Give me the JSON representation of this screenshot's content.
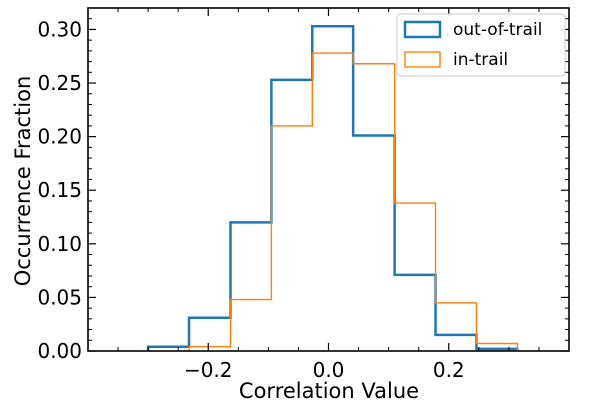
{
  "chart_data": {
    "type": "histogram",
    "xlabel": "Correlation Value",
    "ylabel": "Occurrence Fraction",
    "xlim": [
      -0.4,
      0.4
    ],
    "ylim": [
      0.0,
      0.32
    ],
    "xticks": [
      -0.2,
      0.0,
      0.2
    ],
    "xtick_labels": [
      "−0.2",
      "0.0",
      "0.2"
    ],
    "yticks": [
      0.0,
      0.05,
      0.1,
      0.15,
      0.2,
      0.25,
      0.3
    ],
    "ytick_labels": [
      "0.00",
      "0.05",
      "0.10",
      "0.15",
      "0.20",
      "0.25",
      "0.30"
    ],
    "grid": false,
    "legend_position": "top-right",
    "series": [
      {
        "name": "out-of-trail",
        "color": "#1f77b4",
        "style": "step",
        "bin_edges": [
          -0.3,
          -0.232,
          -0.163,
          -0.095,
          -0.027,
          0.041,
          0.11,
          0.178,
          0.246,
          0.314
        ],
        "values": [
          0.004,
          0.031,
          0.12,
          0.253,
          0.303,
          0.201,
          0.071,
          0.015,
          0.002
        ]
      },
      {
        "name": "in-trail",
        "color": "#ff7f0e",
        "style": "step",
        "bin_edges": [
          -0.232,
          -0.163,
          -0.095,
          -0.027,
          0.041,
          0.11,
          0.178,
          0.246,
          0.314
        ],
        "values": [
          0.004,
          0.048,
          0.21,
          0.278,
          0.268,
          0.138,
          0.045,
          0.007
        ]
      }
    ]
  }
}
